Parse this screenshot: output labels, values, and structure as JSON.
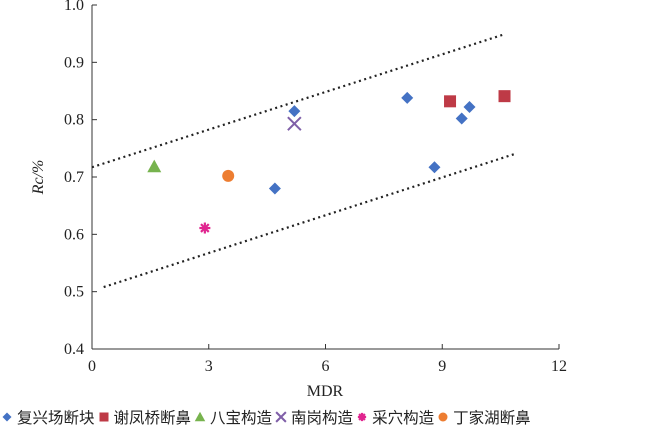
{
  "chart_data": {
    "type": "scatter",
    "xlabel": "MDR",
    "ylabel": "Rc/%",
    "xlim": [
      0,
      12
    ],
    "ylim": [
      0.4,
      1.0
    ],
    "xticks": [
      0,
      3,
      6,
      9,
      12
    ],
    "yticks": [
      0.4,
      0.5,
      0.6,
      0.7,
      0.8,
      0.9,
      1.0
    ],
    "xtick_labels": [
      "0",
      "3",
      "6",
      "9",
      "12"
    ],
    "ytick_labels": [
      "0.4",
      "0.5",
      "0.6",
      "0.7",
      "0.8",
      "0.9",
      "1.0"
    ],
    "legend_position": "bottom",
    "series": [
      {
        "name": "复兴场断块",
        "marker": "diamond",
        "color": "#4472c4",
        "points": [
          [
            4.7,
            0.68
          ],
          [
            5.2,
            0.815
          ],
          [
            8.1,
            0.838
          ],
          [
            8.8,
            0.717
          ],
          [
            9.5,
            0.802
          ],
          [
            9.7,
            0.822
          ]
        ]
      },
      {
        "name": "谢凤桥断鼻",
        "marker": "square",
        "color": "#be3a46",
        "points": [
          [
            9.2,
            0.832
          ],
          [
            10.6,
            0.841
          ]
        ]
      },
      {
        "name": "八宝构造",
        "marker": "triangle",
        "color": "#77b34e",
        "points": [
          [
            1.6,
            0.718
          ]
        ]
      },
      {
        "name": "南岗构造",
        "marker": "x",
        "color": "#7f5fa8",
        "points": [
          [
            5.2,
            0.793
          ]
        ]
      },
      {
        "name": "采穴构造",
        "marker": "asterisk",
        "color": "#e0258f",
        "points": [
          [
            2.9,
            0.611
          ]
        ]
      },
      {
        "name": "丁家湖断鼻",
        "marker": "circle",
        "color": "#ed7d31",
        "points": [
          [
            3.5,
            0.702
          ]
        ]
      }
    ],
    "bounds": [
      {
        "name": "upper",
        "style": "dotted",
        "points": [
          [
            0,
            0.717
          ],
          [
            10.6,
            0.949
          ]
        ]
      },
      {
        "name": "lower",
        "style": "dotted",
        "points": [
          [
            0.3,
            0.508
          ],
          [
            10.9,
            0.741
          ]
        ]
      }
    ]
  }
}
